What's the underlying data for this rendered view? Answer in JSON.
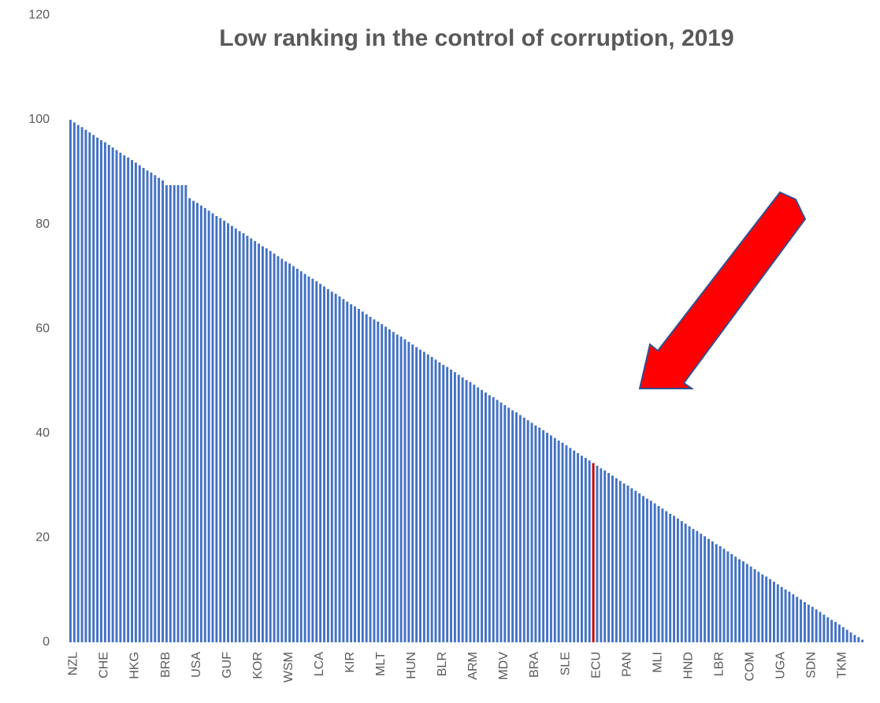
{
  "chart_data": {
    "type": "bar",
    "title": "Low ranking in the control of corruption, 2019",
    "color": "#4472c4",
    "highlight_category": "ECU",
    "highlight_color": "#c00000",
    "ylim": [
      0,
      120
    ],
    "yticks": [
      0,
      20,
      40,
      60,
      80,
      100,
      120
    ],
    "grid": false,
    "categories": [
      "NZL",
      null,
      null,
      null,
      null,
      null,
      null,
      null,
      "CHE",
      null,
      null,
      null,
      null,
      null,
      null,
      null,
      "HKG",
      null,
      null,
      null,
      null,
      null,
      null,
      null,
      "BRB",
      null,
      null,
      null,
      null,
      null,
      null,
      null,
      "USA",
      null,
      null,
      null,
      null,
      null,
      null,
      null,
      "GUF",
      null,
      null,
      null,
      null,
      null,
      null,
      null,
      "KOR",
      null,
      null,
      null,
      null,
      null,
      null,
      null,
      "WSM",
      null,
      null,
      null,
      null,
      null,
      null,
      null,
      "LCA",
      null,
      null,
      null,
      null,
      null,
      null,
      null,
      "KIR",
      null,
      null,
      null,
      null,
      null,
      null,
      null,
      "MLT",
      null,
      null,
      null,
      null,
      null,
      null,
      null,
      "HUN",
      null,
      null,
      null,
      null,
      null,
      null,
      null,
      "BLR",
      null,
      null,
      null,
      null,
      null,
      null,
      null,
      "ARM",
      null,
      null,
      null,
      null,
      null,
      null,
      null,
      "MDV",
      null,
      null,
      null,
      null,
      null,
      null,
      null,
      "BRA",
      null,
      null,
      null,
      null,
      null,
      null,
      null,
      "SLE",
      null,
      null,
      null,
      null,
      null,
      null,
      null,
      "ECU",
      null,
      null,
      null,
      null,
      null,
      null,
      null,
      "PAN",
      null,
      null,
      null,
      null,
      null,
      null,
      null,
      "MLI",
      null,
      null,
      null,
      null,
      null,
      null,
      null,
      "HND",
      null,
      null,
      null,
      null,
      null,
      null,
      null,
      "LBR",
      null,
      null,
      null,
      null,
      null,
      null,
      null,
      "COM",
      null,
      null,
      null,
      null,
      null,
      null,
      null,
      "UGA",
      null,
      null,
      null,
      null,
      null,
      null,
      null,
      "SDN",
      null,
      null,
      null,
      null,
      null,
      null,
      null,
      "TKM",
      null,
      null,
      null,
      null,
      null,
      null,
      null
    ],
    "values": [
      100,
      99.5,
      99.0,
      98.6,
      98.1,
      97.6,
      97.1,
      96.6,
      96.1,
      95.7,
      95.2,
      94.7,
      94.2,
      93.7,
      93.2,
      92.8,
      92.3,
      91.8,
      91.3,
      90.8,
      90.3,
      89.9,
      89.4,
      88.9,
      88.4,
      87.5,
      87.5,
      87.5,
      87.5,
      87.5,
      87.5,
      85.0,
      84.5,
      84.1,
      83.6,
      83.1,
      82.6,
      82.1,
      81.6,
      81.2,
      80.7,
      80.2,
      79.7,
      79.2,
      78.7,
      78.3,
      77.8,
      77.3,
      76.8,
      76.3,
      75.8,
      75.4,
      74.9,
      74.4,
      73.9,
      73.4,
      72.9,
      72.5,
      72.0,
      71.5,
      71.0,
      70.5,
      70.0,
      69.6,
      69.1,
      68.6,
      68.1,
      67.6,
      67.1,
      66.7,
      66.2,
      65.7,
      65.2,
      64.7,
      64.3,
      63.8,
      63.3,
      62.8,
      62.3,
      61.8,
      61.4,
      60.9,
      60.4,
      59.9,
      59.4,
      58.9,
      58.5,
      58.0,
      57.5,
      57.0,
      56.5,
      56.0,
      55.6,
      55.1,
      54.6,
      54.1,
      53.6,
      53.1,
      52.7,
      52.2,
      51.7,
      51.2,
      50.7,
      50.2,
      49.8,
      49.3,
      48.8,
      48.3,
      47.8,
      47.3,
      46.9,
      46.4,
      45.9,
      45.4,
      44.9,
      44.4,
      44.0,
      43.5,
      43.0,
      42.5,
      42.0,
      41.5,
      41.1,
      40.6,
      40.1,
      39.6,
      39.1,
      38.6,
      38.2,
      37.7,
      37.2,
      36.7,
      36.2,
      35.7,
      35.3,
      34.8,
      34.3,
      33.8,
      33.3,
      32.9,
      32.4,
      31.9,
      31.4,
      30.9,
      30.4,
      30.0,
      29.5,
      29.0,
      28.5,
      28.0,
      27.5,
      27.1,
      26.6,
      26.1,
      25.6,
      25.1,
      24.6,
      24.2,
      23.7,
      23.2,
      22.7,
      22.2,
      21.7,
      21.3,
      20.8,
      20.3,
      19.8,
      19.3,
      18.8,
      18.4,
      17.9,
      17.4,
      16.9,
      16.4,
      15.9,
      15.5,
      15.0,
      14.5,
      14.0,
      13.5,
      13.0,
      12.6,
      12.1,
      11.6,
      11.1,
      10.6,
      10.1,
      9.7,
      9.2,
      8.7,
      8.2,
      7.7,
      7.2,
      6.8,
      6.3,
      5.8,
      5.3,
      4.8,
      4.3,
      3.9,
      3.4,
      2.9,
      2.4,
      1.9,
      1.4,
      1.0,
      0.5,
      0.0
    ]
  }
}
